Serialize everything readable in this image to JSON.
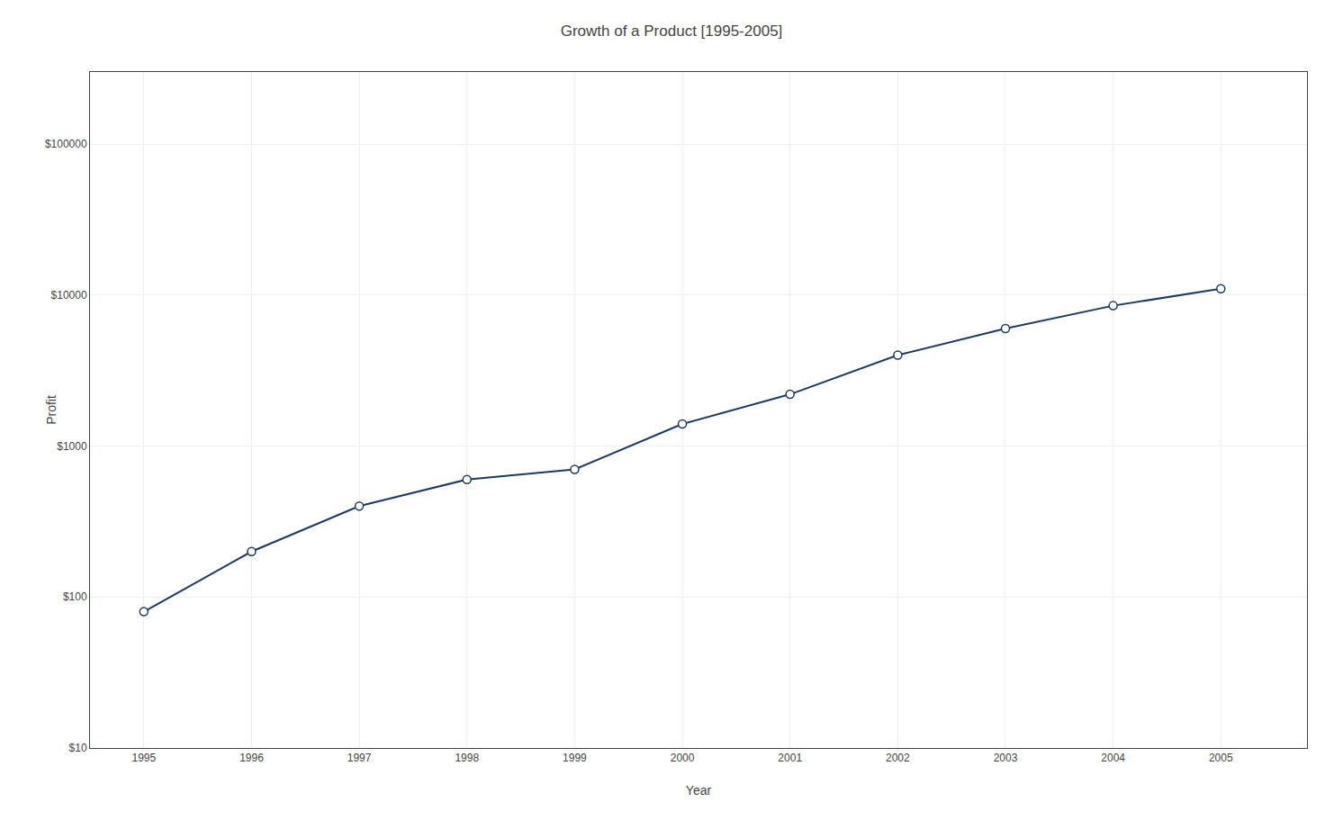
{
  "chart_data": {
    "type": "line",
    "title": "Growth of a Product [1995-2005]",
    "xlabel": "Year",
    "ylabel": "Profit",
    "x": [
      1995,
      1996,
      1997,
      1998,
      1999,
      2000,
      2001,
      2002,
      2003,
      2004,
      2005
    ],
    "values": [
      80,
      200,
      400,
      600,
      700,
      1400,
      2200,
      4000,
      6000,
      8500,
      11000
    ],
    "color": "#1e3a5f",
    "marker": "circle",
    "log": "y",
    "grid": true,
    "xlim": [
      1994.5,
      2005.8
    ],
    "xticks": [
      1995,
      1996,
      1997,
      1998,
      1999,
      2000,
      2001,
      2002,
      2003,
      2004,
      2005
    ],
    "ylim": [
      10,
      300000
    ],
    "yticks": [
      {
        "value": 10,
        "label": "$10"
      },
      {
        "value": 100,
        "label": "$100"
      },
      {
        "value": 1000,
        "label": "$1000"
      },
      {
        "value": 10000,
        "label": "$10000"
      },
      {
        "value": 100000,
        "label": "$100000"
      }
    ]
  }
}
